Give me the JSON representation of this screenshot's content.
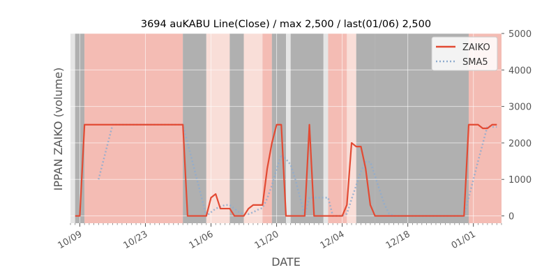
{
  "chart_data": {
    "type": "line",
    "title": "3694 auKABU Line(Close) / max 2,500 / last(01/06) 2,500",
    "xlabel": "DATE",
    "ylabel": "IPPAN ZAIKO (volume)",
    "ylim": [
      -200,
      5000
    ],
    "yticks": [
      0,
      1000,
      2000,
      3000,
      4000,
      5000
    ],
    "ytick_labels": [
      "0",
      "1000",
      "2000",
      "3000",
      "4000",
      "5000"
    ],
    "xticks": [
      {
        "date": "2020-10-09",
        "label": "10/09"
      },
      {
        "date": "2020-10-23",
        "label": "10/23"
      },
      {
        "date": "2020-11-06",
        "label": "11/06"
      },
      {
        "date": "2020-11-20",
        "label": "11/20"
      },
      {
        "date": "2020-12-04",
        "label": "12/04"
      },
      {
        "date": "2020-12-18",
        "label": "12/18"
      },
      {
        "date": "2021-01-01",
        "label": "01/01"
      }
    ],
    "xlim": [
      "2020-10-07",
      "2021-01-07"
    ],
    "grid": true,
    "legend_position": "top-right",
    "series": [
      {
        "name": "ZAIKO",
        "color": "#e24a33",
        "style": "solid",
        "points": [
          [
            "2020-10-08",
            0
          ],
          [
            "2020-10-09",
            0
          ],
          [
            "2020-10-10",
            2500
          ],
          [
            "2020-10-11",
            2500
          ],
          [
            "2020-10-31",
            2500
          ],
          [
            "2020-11-01",
            0
          ],
          [
            "2020-11-02",
            0
          ],
          [
            "2020-11-05",
            0
          ],
          [
            "2020-11-06",
            500
          ],
          [
            "2020-11-07",
            600
          ],
          [
            "2020-11-08",
            200
          ],
          [
            "2020-11-09",
            200
          ],
          [
            "2020-11-10",
            200
          ],
          [
            "2020-11-11",
            0
          ],
          [
            "2020-11-12",
            0
          ],
          [
            "2020-11-13",
            0
          ],
          [
            "2020-11-14",
            200
          ],
          [
            "2020-11-15",
            300
          ],
          [
            "2020-11-16",
            300
          ],
          [
            "2020-11-17",
            300
          ],
          [
            "2020-11-18",
            1300
          ],
          [
            "2020-11-19",
            2000
          ],
          [
            "2020-11-20",
            2500
          ],
          [
            "2020-11-21",
            2500
          ],
          [
            "2020-11-22",
            0
          ],
          [
            "2020-11-23",
            0
          ],
          [
            "2020-11-26",
            0
          ],
          [
            "2020-11-27",
            2500
          ],
          [
            "2020-11-28",
            0
          ],
          [
            "2020-11-29",
            0
          ],
          [
            "2020-12-04",
            0
          ],
          [
            "2020-12-05",
            300
          ],
          [
            "2020-12-06",
            2000
          ],
          [
            "2020-12-07",
            1900
          ],
          [
            "2020-12-08",
            1900
          ],
          [
            "2020-12-09",
            1300
          ],
          [
            "2020-12-10",
            300
          ],
          [
            "2020-12-11",
            0
          ],
          [
            "2020-12-12",
            0
          ],
          [
            "2020-12-30",
            0
          ],
          [
            "2020-12-31",
            2500
          ],
          [
            "2021-01-01",
            2500
          ],
          [
            "2021-01-02",
            2500
          ],
          [
            "2021-01-03",
            2400
          ],
          [
            "2021-01-04",
            2400
          ],
          [
            "2021-01-05",
            2500
          ],
          [
            "2021-01-06",
            2500
          ]
        ]
      },
      {
        "name": "SMA5",
        "color": "#8eaccf",
        "style": "dotted",
        "points": [
          [
            "2020-10-13",
            1000
          ],
          [
            "2020-10-14",
            1500
          ],
          [
            "2020-10-15",
            2000
          ],
          [
            "2020-10-16",
            2500
          ],
          [
            "2020-10-31",
            2500
          ],
          [
            "2020-11-01",
            2000
          ],
          [
            "2020-11-02",
            1500
          ],
          [
            "2020-11-03",
            1000
          ],
          [
            "2020-11-04",
            500
          ],
          [
            "2020-11-05",
            0
          ],
          [
            "2020-11-06",
            100
          ],
          [
            "2020-11-07",
            200
          ],
          [
            "2020-11-08",
            250
          ],
          [
            "2020-11-09",
            300
          ],
          [
            "2020-11-10",
            300
          ],
          [
            "2020-11-11",
            200
          ],
          [
            "2020-11-12",
            100
          ],
          [
            "2020-11-13",
            50
          ],
          [
            "2020-11-14",
            50
          ],
          [
            "2020-11-15",
            100
          ],
          [
            "2020-11-16",
            170
          ],
          [
            "2020-11-17",
            220
          ],
          [
            "2020-11-18",
            480
          ],
          [
            "2020-11-19",
            840
          ],
          [
            "2020-11-20",
            1280
          ],
          [
            "2020-11-21",
            1680
          ],
          [
            "2020-11-22",
            1560
          ],
          [
            "2020-11-23",
            1400
          ],
          [
            "2020-11-24",
            1000
          ],
          [
            "2020-11-25",
            500
          ],
          [
            "2020-11-26",
            0
          ],
          [
            "2020-11-27",
            500
          ],
          [
            "2020-11-28",
            500
          ],
          [
            "2020-11-29",
            500
          ],
          [
            "2020-11-30",
            500
          ],
          [
            "2020-12-01",
            500
          ],
          [
            "2020-12-02",
            0
          ],
          [
            "2020-12-03",
            0
          ],
          [
            "2020-12-04",
            0
          ],
          [
            "2020-12-05",
            60
          ],
          [
            "2020-12-06",
            460
          ],
          [
            "2020-12-07",
            840
          ],
          [
            "2020-12-08",
            1220
          ],
          [
            "2020-12-09",
            1480
          ],
          [
            "2020-12-10",
            1480
          ],
          [
            "2020-12-11",
            1100
          ],
          [
            "2020-12-12",
            700
          ],
          [
            "2020-12-13",
            320
          ],
          [
            "2020-12-14",
            60
          ],
          [
            "2020-12-15",
            0
          ],
          [
            "2020-12-30",
            0
          ],
          [
            "2020-12-31",
            500
          ],
          [
            "2021-01-01",
            1000
          ],
          [
            "2021-01-02",
            1500
          ],
          [
            "2021-01-03",
            1980
          ],
          [
            "2021-01-04",
            2460
          ],
          [
            "2021-01-05",
            2440
          ],
          [
            "2021-01-06",
            2440
          ]
        ]
      }
    ],
    "background_bands": [
      {
        "start": "2020-10-07",
        "end": "2020-10-08",
        "color": "#e5e5e5"
      },
      {
        "start": "2020-10-08",
        "end": "2020-10-10",
        "color": "#b0b0b0"
      },
      {
        "start": "2020-10-10",
        "end": "2020-10-31",
        "color": "#f4bcb4"
      },
      {
        "start": "2020-10-31",
        "end": "2020-11-05",
        "color": "#b0b0b0"
      },
      {
        "start": "2020-11-05",
        "end": "2020-11-10",
        "color": "#f9ded8"
      },
      {
        "start": "2020-11-10",
        "end": "2020-11-13",
        "color": "#b0b0b0"
      },
      {
        "start": "2020-11-13",
        "end": "2020-11-17",
        "color": "#f9ded8"
      },
      {
        "start": "2020-11-17",
        "end": "2020-11-19",
        "color": "#f4bcb4"
      },
      {
        "start": "2020-11-19",
        "end": "2020-11-22",
        "color": "#b0b0b0"
      },
      {
        "start": "2020-11-22",
        "end": "2020-11-23",
        "color": "#e5e5e5"
      },
      {
        "start": "2020-11-23",
        "end": "2020-11-30",
        "color": "#b0b0b0"
      },
      {
        "start": "2020-11-30",
        "end": "2020-12-01",
        "color": "#e5e5e5"
      },
      {
        "start": "2020-12-01",
        "end": "2020-12-05",
        "color": "#f4bcb4"
      },
      {
        "start": "2020-12-05",
        "end": "2020-12-07",
        "color": "#f9ded8"
      },
      {
        "start": "2020-12-07",
        "end": "2020-12-11",
        "color": "#b0b0b0"
      },
      {
        "start": "2020-12-11",
        "end": "2020-12-31",
        "color": "#b0b0b0"
      },
      {
        "start": "2020-12-31",
        "end": "2021-01-07",
        "color": "#f4bcb4"
      }
    ]
  }
}
